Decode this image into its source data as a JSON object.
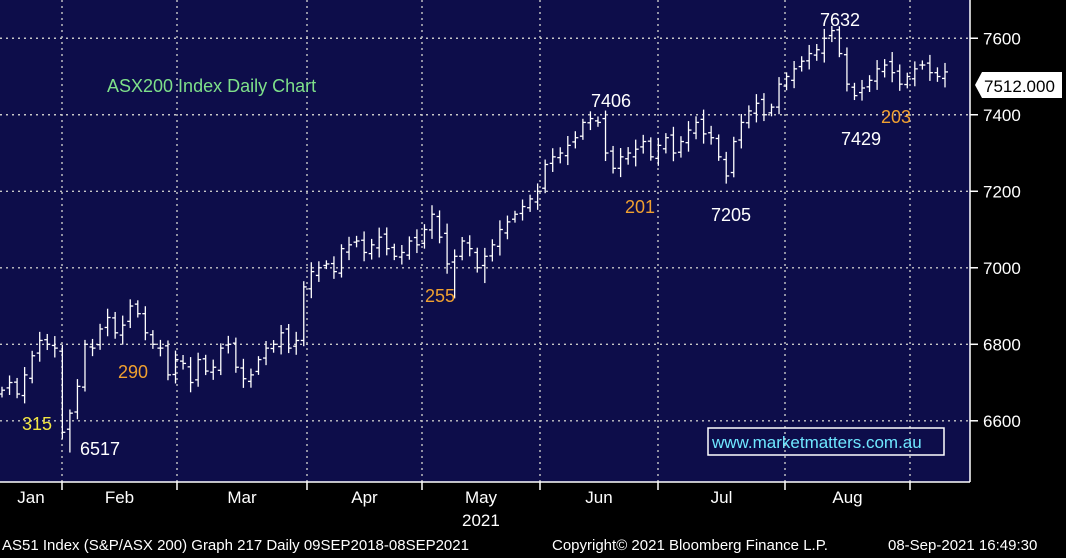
{
  "chart_data": {
    "type": "ohlc",
    "title": "ASX200 Index Daily Chart",
    "x_axis": {
      "months": [
        "Jan",
        "Feb",
        "Mar",
        "Apr",
        "May",
        "Jun",
        "Jul",
        "Aug"
      ],
      "year": "2021"
    },
    "y_axis": {
      "ticks": [
        6600,
        6800,
        7000,
        7200,
        7400,
        7600
      ],
      "range": [
        6440,
        7700
      ],
      "position": "right"
    },
    "last_price": "7512.000",
    "annotations": [
      {
        "text": "315",
        "color": "#f2e642"
      },
      {
        "text": "6517",
        "color": "#ffffff"
      },
      {
        "text": "290",
        "color": "#f0a030"
      },
      {
        "text": "255",
        "color": "#f0a030"
      },
      {
        "text": "7406",
        "color": "#ffffff"
      },
      {
        "text": "201",
        "color": "#f0a030"
      },
      {
        "text": "7205",
        "color": "#ffffff"
      },
      {
        "text": "7632",
        "color": "#ffffff"
      },
      {
        "text": "7429",
        "color": "#ffffff"
      },
      {
        "text": "203",
        "color": "#f0a030"
      }
    ],
    "watermark": "www.marketmatters.com.au",
    "closes": [
      6680,
      6700,
      6670,
      6720,
      6770,
      6810,
      6800,
      6790,
      6570,
      6620,
      6690,
      6800,
      6790,
      6840,
      6870,
      6830,
      6850,
      6900,
      6880,
      6830,
      6800,
      6790,
      6720,
      6760,
      6750,
      6700,
      6760,
      6730,
      6740,
      6790,
      6800,
      6740,
      6710,
      6720,
      6760,
      6790,
      6800,
      6830,
      6790,
      6810,
      6950,
      6990,
      7000,
      7010,
      6990,
      7050,
      7060,
      7070,
      7040,
      7060,
      7080,
      7050,
      7030,
      7040,
      7070,
      7060,
      7100,
      7140,
      7080,
      7010,
      7030,
      7070,
      7050,
      7000,
      7030,
      7060,
      7100,
      7120,
      7140,
      7160,
      7180,
      7200,
      7270,
      7290,
      7300,
      7320,
      7340,
      7380,
      7390,
      7380,
      7300,
      7260,
      7290,
      7300,
      7310,
      7330,
      7290,
      7320,
      7340,
      7300,
      7330,
      7360,
      7380,
      7350,
      7340,
      7290,
      7240,
      7330,
      7380,
      7410,
      7430,
      7400,
      7420,
      7480,
      7500,
      7520,
      7540,
      7560,
      7570,
      7600,
      7620,
      7560,
      7480,
      7450,
      7470,
      7490,
      7520,
      7530,
      7510,
      7480,
      7500,
      7520,
      7530,
      7510,
      7500,
      7512
    ],
    "series_color": "#ffffff",
    "background": "#0d0d4a",
    "grid": true
  },
  "footer": {
    "left": "AS51 Index (S&P/ASX 200) Graph 217  Daily 09SEP2018-08SEP2021",
    "middle": "Copyright© 2021 Bloomberg Finance L.P.",
    "right": "08-Sep-2021 16:49:30"
  }
}
